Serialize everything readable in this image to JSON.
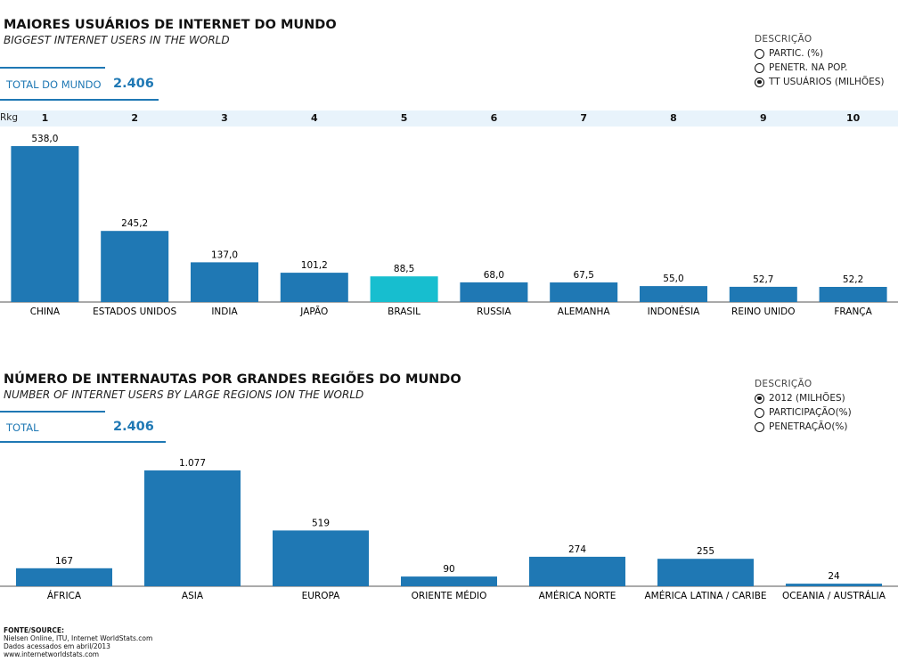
{
  "section1": {
    "title": "MAIORES USUÁRIOS DE INTERNET DO MUNDO",
    "subtitle": "BIGGEST INTERNET USERS IN THE WORLD",
    "total_label": "TOTAL DO MUNDO",
    "total_value": "2.406",
    "legend": {
      "title": "DESCRIÇÃO",
      "options": [
        {
          "label": "PARTIC. (%)",
          "checked": false
        },
        {
          "label": "PENETR. NA POP.",
          "checked": false
        },
        {
          "label": "TT USUÁRIOS (MILHÕES)",
          "checked": true
        }
      ]
    },
    "rank_label": "Rkg"
  },
  "section2": {
    "title": "NÚMERO DE INTERNAUTAS POR GRANDES REGIÕES DO MUNDO",
    "subtitle": "NUMBER OF INTERNET USERS BY LARGE REGIONS ION THE WORLD",
    "total_label": "TOTAL",
    "total_value": "2.406",
    "legend": {
      "title": "DESCRIÇÃO",
      "options": [
        {
          "label": "2012 (MILHÕES)",
          "checked": true
        },
        {
          "label": "PARTICIPAÇÃO(%)",
          "checked": false
        },
        {
          "label": "PENETRAÇÃO(%)",
          "checked": false
        }
      ]
    }
  },
  "source": {
    "lines": [
      "FONTE/SOURCE:",
      "Nielsen Online, ITU, Internet WorldStats.com",
      "Dados acessados em abril/2013",
      "www.internetworldstats.com"
    ]
  },
  "colors": {
    "bar": "#1f78b4",
    "highlight": "#17becf",
    "accent": "#1f78b4",
    "rank_band": "#e8f3fb"
  },
  "chart_data": [
    {
      "type": "bar",
      "ranks": [
        "1",
        "2",
        "3",
        "4",
        "5",
        "6",
        "7",
        "8",
        "9",
        "10"
      ],
      "categories": [
        "CHINA",
        "ESTADOS UNIDOS",
        "INDIA",
        "JAPÃO",
        "BRASIL",
        "RUSSIA",
        "ALEMANHA",
        "INDONÉSIA",
        "REINO UNIDO",
        "FRANÇA"
      ],
      "values": [
        538.0,
        245.2,
        137.0,
        101.2,
        88.5,
        68.0,
        67.5,
        55.0,
        52.7,
        52.2
      ],
      "value_labels": [
        "538,0",
        "245,2",
        "137,0",
        "101,2",
        "88,5",
        "68,0",
        "67,5",
        "55,0",
        "52,7",
        "52,2"
      ],
      "highlight": "BRASIL"
    },
    {
      "type": "bar",
      "categories": [
        "ÁFRICA",
        "ASIA",
        "EUROPA",
        "ORIENTE MÉDIO",
        "AMÉRICA NORTE",
        "AMÉRICA LATINA / CARIBE",
        "OCEANIA / AUSTRÁLIA"
      ],
      "values": [
        167,
        1077,
        519,
        90,
        274,
        255,
        24
      ],
      "value_labels": [
        "167",
        "1.077",
        "519",
        "90",
        "274",
        "255",
        "24"
      ]
    }
  ]
}
